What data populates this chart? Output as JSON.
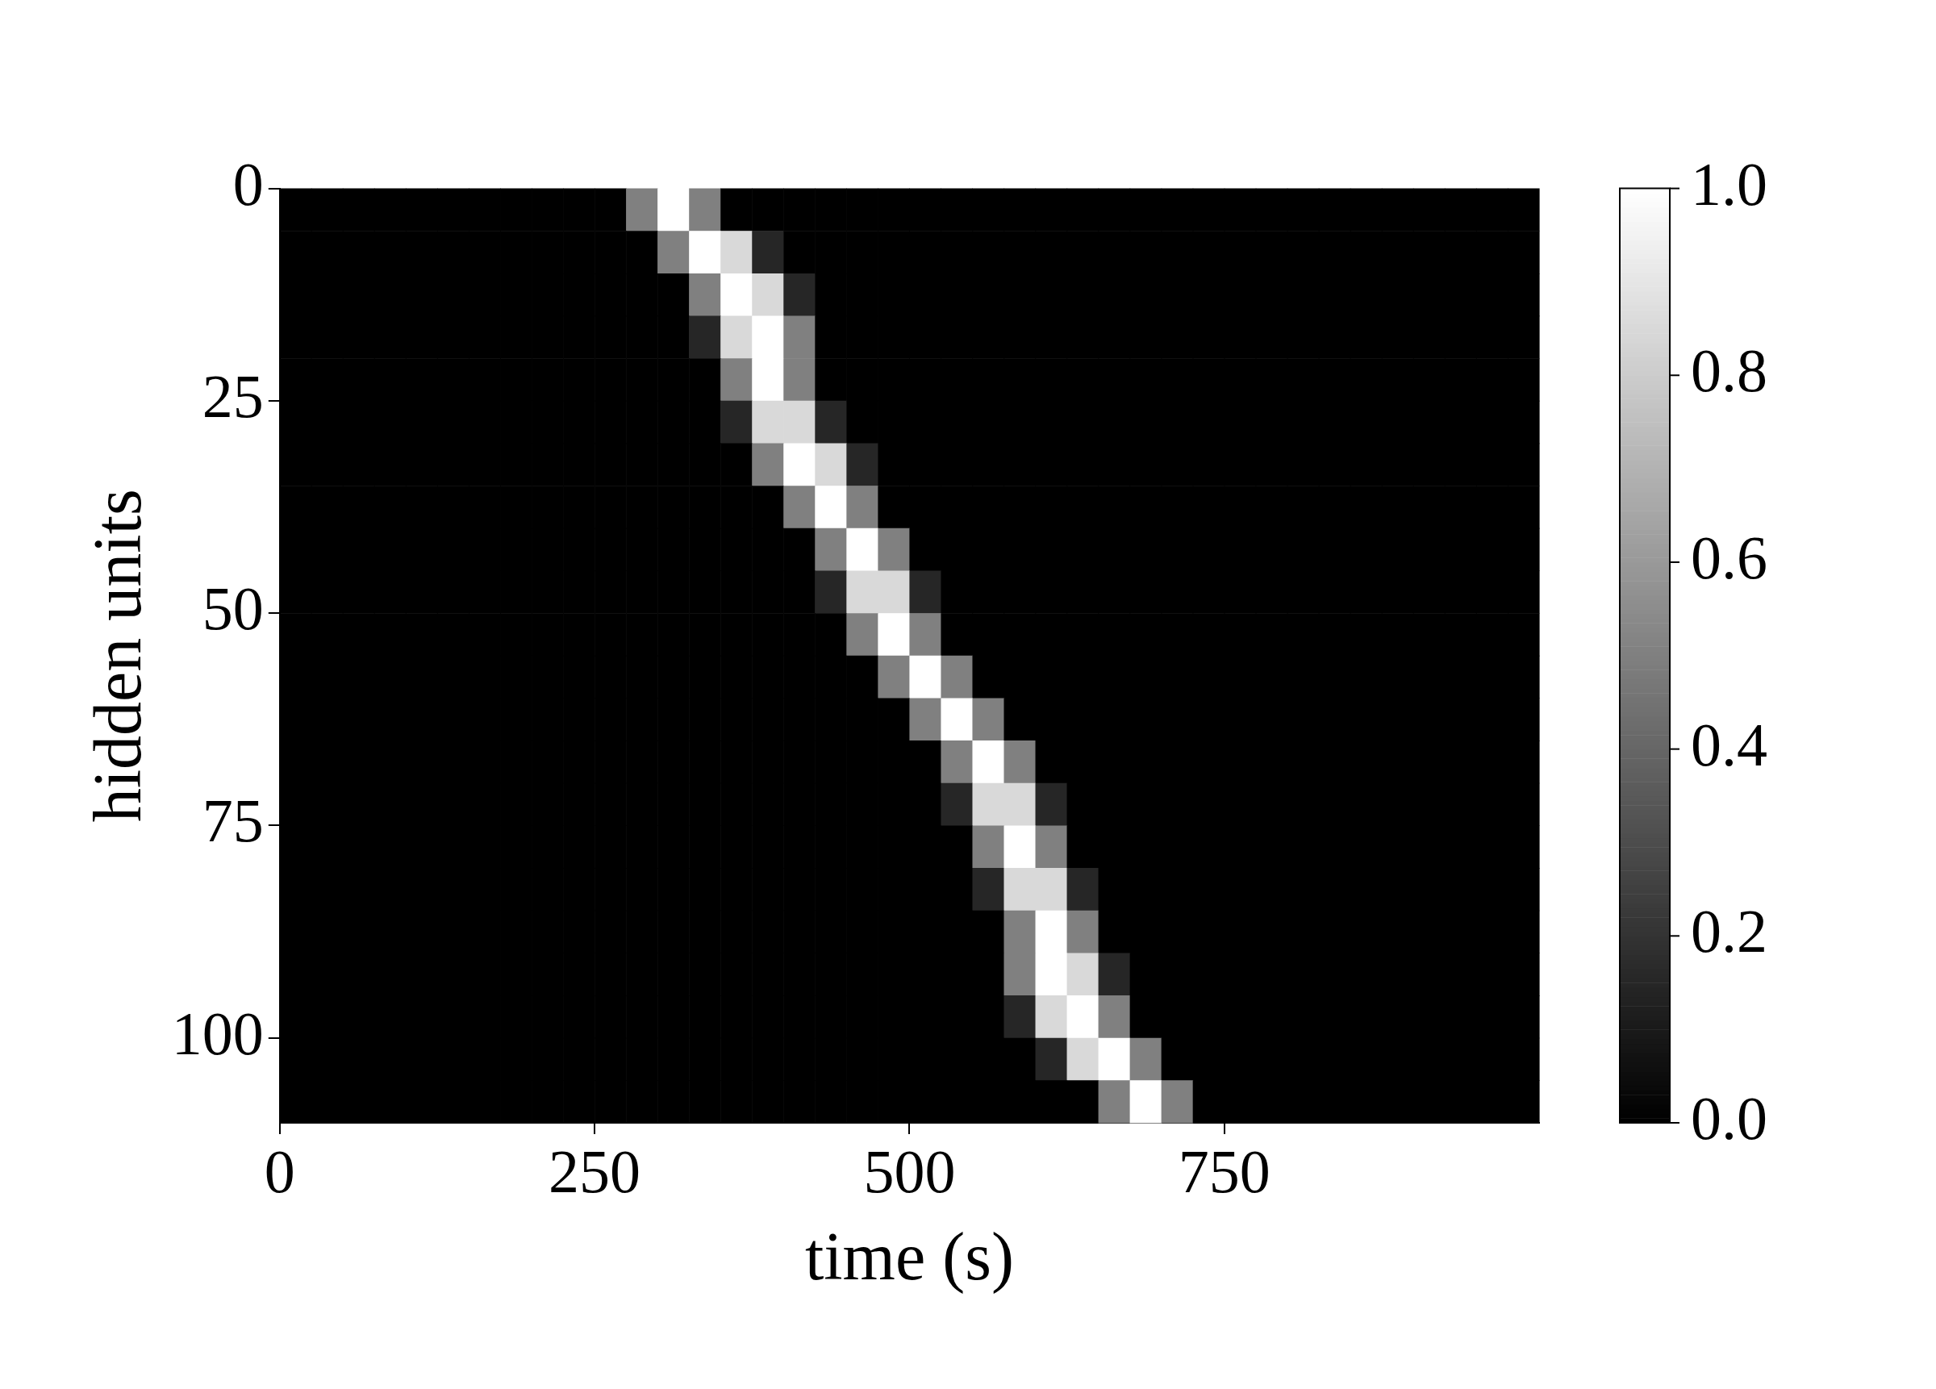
{
  "chart_data": {
    "type": "heatmap",
    "xlabel": "time (s)",
    "ylabel": "hidden units",
    "xlim": [
      0,
      1000
    ],
    "xticks": [
      0,
      250,
      500,
      750
    ],
    "ylim": [
      110,
      0
    ],
    "yticks": [
      0,
      25,
      50,
      75,
      100
    ],
    "clim": [
      0,
      1
    ],
    "cticks": [
      {
        "value": 0,
        "label": "0.0"
      },
      {
        "value": 0.2,
        "label": "0.2"
      },
      {
        "value": 0.4,
        "label": "0.4"
      },
      {
        "value": 0.6,
        "label": "0.6"
      },
      {
        "value": 0.8,
        "label": "0.8"
      },
      {
        "value": 1,
        "label": "1.0"
      }
    ],
    "cells": [
      [
        0,
        0,
        0,
        0,
        0,
        0,
        0,
        0,
        0,
        0,
        0,
        0.5,
        1,
        0.5,
        0,
        0,
        0,
        0,
        0,
        0,
        0,
        0,
        0,
        0,
        0,
        0,
        0,
        0,
        0,
        0,
        0,
        0,
        0,
        0,
        0,
        0,
        0,
        0,
        0,
        0
      ],
      [
        0,
        0,
        0,
        0,
        0,
        0,
        0,
        0,
        0,
        0,
        0,
        0,
        0.5,
        1,
        0.85,
        0.15,
        0,
        0,
        0,
        0,
        0,
        0,
        0,
        0,
        0,
        0,
        0,
        0,
        0,
        0,
        0,
        0,
        0,
        0,
        0,
        0,
        0,
        0,
        0,
        0
      ],
      [
        0,
        0,
        0,
        0,
        0,
        0,
        0,
        0,
        0,
        0,
        0,
        0,
        0,
        0.5,
        1,
        0.85,
        0.15,
        0,
        0,
        0,
        0,
        0,
        0,
        0,
        0,
        0,
        0,
        0,
        0,
        0,
        0,
        0,
        0,
        0,
        0,
        0,
        0,
        0,
        0,
        0
      ],
      [
        0,
        0,
        0,
        0,
        0,
        0,
        0,
        0,
        0,
        0,
        0,
        0,
        0,
        0.15,
        0.85,
        1,
        0.5,
        0,
        0,
        0,
        0,
        0,
        0,
        0,
        0,
        0,
        0,
        0,
        0,
        0,
        0,
        0,
        0,
        0,
        0,
        0,
        0,
        0,
        0,
        0
      ],
      [
        0,
        0,
        0,
        0,
        0,
        0,
        0,
        0,
        0,
        0,
        0,
        0,
        0,
        0,
        0.5,
        1,
        0.5,
        0,
        0,
        0,
        0,
        0,
        0,
        0,
        0,
        0,
        0,
        0,
        0,
        0,
        0,
        0,
        0,
        0,
        0,
        0,
        0,
        0,
        0,
        0
      ],
      [
        0,
        0,
        0,
        0,
        0,
        0,
        0,
        0,
        0,
        0,
        0,
        0,
        0,
        0,
        0.15,
        0.85,
        0.85,
        0.15,
        0,
        0,
        0,
        0,
        0,
        0,
        0,
        0,
        0,
        0,
        0,
        0,
        0,
        0,
        0,
        0,
        0,
        0,
        0,
        0,
        0,
        0
      ],
      [
        0,
        0,
        0,
        0,
        0,
        0,
        0,
        0,
        0,
        0,
        0,
        0,
        0,
        0,
        0,
        0.5,
        1,
        0.85,
        0.15,
        0,
        0,
        0,
        0,
        0,
        0,
        0,
        0,
        0,
        0,
        0,
        0,
        0,
        0,
        0,
        0,
        0,
        0,
        0,
        0,
        0
      ],
      [
        0,
        0,
        0,
        0,
        0,
        0,
        0,
        0,
        0,
        0,
        0,
        0,
        0,
        0,
        0,
        0,
        0.5,
        1,
        0.5,
        0,
        0,
        0,
        0,
        0,
        0,
        0,
        0,
        0,
        0,
        0,
        0,
        0,
        0,
        0,
        0,
        0,
        0,
        0,
        0,
        0
      ],
      [
        0,
        0,
        0,
        0,
        0,
        0,
        0,
        0,
        0,
        0,
        0,
        0,
        0,
        0,
        0,
        0,
        0,
        0.5,
        1,
        0.5,
        0,
        0,
        0,
        0,
        0,
        0,
        0,
        0,
        0,
        0,
        0,
        0,
        0,
        0,
        0,
        0,
        0,
        0,
        0,
        0
      ],
      [
        0,
        0,
        0,
        0,
        0,
        0,
        0,
        0,
        0,
        0,
        0,
        0,
        0,
        0,
        0,
        0,
        0,
        0.15,
        0.85,
        0.85,
        0.15,
        0,
        0,
        0,
        0,
        0,
        0,
        0,
        0,
        0,
        0,
        0,
        0,
        0,
        0,
        0,
        0,
        0,
        0,
        0
      ],
      [
        0,
        0,
        0,
        0,
        0,
        0,
        0,
        0,
        0,
        0,
        0,
        0,
        0,
        0,
        0,
        0,
        0,
        0,
        0.5,
        1,
        0.5,
        0,
        0,
        0,
        0,
        0,
        0,
        0,
        0,
        0,
        0,
        0,
        0,
        0,
        0,
        0,
        0,
        0,
        0,
        0
      ],
      [
        0,
        0,
        0,
        0,
        0,
        0,
        0,
        0,
        0,
        0,
        0,
        0,
        0,
        0,
        0,
        0,
        0,
        0,
        0,
        0.5,
        1,
        0.5,
        0,
        0,
        0,
        0,
        0,
        0,
        0,
        0,
        0,
        0,
        0,
        0,
        0,
        0,
        0,
        0,
        0,
        0
      ],
      [
        0,
        0,
        0,
        0,
        0,
        0,
        0,
        0,
        0,
        0,
        0,
        0,
        0,
        0,
        0,
        0,
        0,
        0,
        0,
        0,
        0.5,
        1,
        0.5,
        0,
        0,
        0,
        0,
        0,
        0,
        0,
        0,
        0,
        0,
        0,
        0,
        0,
        0,
        0,
        0,
        0
      ],
      [
        0,
        0,
        0,
        0,
        0,
        0,
        0,
        0,
        0,
        0,
        0,
        0,
        0,
        0,
        0,
        0,
        0,
        0,
        0,
        0,
        0,
        0.5,
        1,
        0.5,
        0,
        0,
        0,
        0,
        0,
        0,
        0,
        0,
        0,
        0,
        0,
        0,
        0,
        0,
        0,
        0
      ],
      [
        0,
        0,
        0,
        0,
        0,
        0,
        0,
        0,
        0,
        0,
        0,
        0,
        0,
        0,
        0,
        0,
        0,
        0,
        0,
        0,
        0,
        0.15,
        0.85,
        0.85,
        0.15,
        0,
        0,
        0,
        0,
        0,
        0,
        0,
        0,
        0,
        0,
        0,
        0,
        0,
        0,
        0
      ],
      [
        0,
        0,
        0,
        0,
        0,
        0,
        0,
        0,
        0,
        0,
        0,
        0,
        0,
        0,
        0,
        0,
        0,
        0,
        0,
        0,
        0,
        0,
        0.5,
        1,
        0.5,
        0,
        0,
        0,
        0,
        0,
        0,
        0,
        0,
        0,
        0,
        0,
        0,
        0,
        0,
        0
      ],
      [
        0,
        0,
        0,
        0,
        0,
        0,
        0,
        0,
        0,
        0,
        0,
        0,
        0,
        0,
        0,
        0,
        0,
        0,
        0,
        0,
        0,
        0,
        0.15,
        0.85,
        0.85,
        0.15,
        0,
        0,
        0,
        0,
        0,
        0,
        0,
        0,
        0,
        0,
        0,
        0,
        0,
        0
      ],
      [
        0,
        0,
        0,
        0,
        0,
        0,
        0,
        0,
        0,
        0,
        0,
        0,
        0,
        0,
        0,
        0,
        0,
        0,
        0,
        0,
        0,
        0,
        0,
        0.5,
        1,
        0.5,
        0,
        0,
        0,
        0,
        0,
        0,
        0,
        0,
        0,
        0,
        0,
        0,
        0,
        0
      ],
      [
        0,
        0,
        0,
        0,
        0,
        0,
        0,
        0,
        0,
        0,
        0,
        0,
        0,
        0,
        0,
        0,
        0,
        0,
        0,
        0,
        0,
        0,
        0,
        0.5,
        1,
        0.85,
        0.15,
        0,
        0,
        0,
        0,
        0,
        0,
        0,
        0,
        0,
        0,
        0,
        0,
        0
      ],
      [
        0,
        0,
        0,
        0,
        0,
        0,
        0,
        0,
        0,
        0,
        0,
        0,
        0,
        0,
        0,
        0,
        0,
        0,
        0,
        0,
        0,
        0,
        0,
        0.15,
        0.85,
        1,
        0.5,
        0,
        0,
        0,
        0,
        0,
        0,
        0,
        0,
        0,
        0,
        0,
        0,
        0
      ],
      [
        0,
        0,
        0,
        0,
        0,
        0,
        0,
        0,
        0,
        0,
        0,
        0,
        0,
        0,
        0,
        0,
        0,
        0,
        0,
        0,
        0,
        0,
        0,
        0,
        0.15,
        0.85,
        1,
        0.5,
        0,
        0,
        0,
        0,
        0,
        0,
        0,
        0,
        0,
        0,
        0,
        0
      ],
      [
        0,
        0,
        0,
        0,
        0,
        0,
        0,
        0,
        0,
        0,
        0,
        0,
        0,
        0,
        0,
        0,
        0,
        0,
        0,
        0,
        0,
        0,
        0,
        0,
        0,
        0,
        0.5,
        1,
        0.5,
        0,
        0,
        0,
        0,
        0,
        0,
        0,
        0,
        0,
        0,
        0
      ]
    ]
  }
}
